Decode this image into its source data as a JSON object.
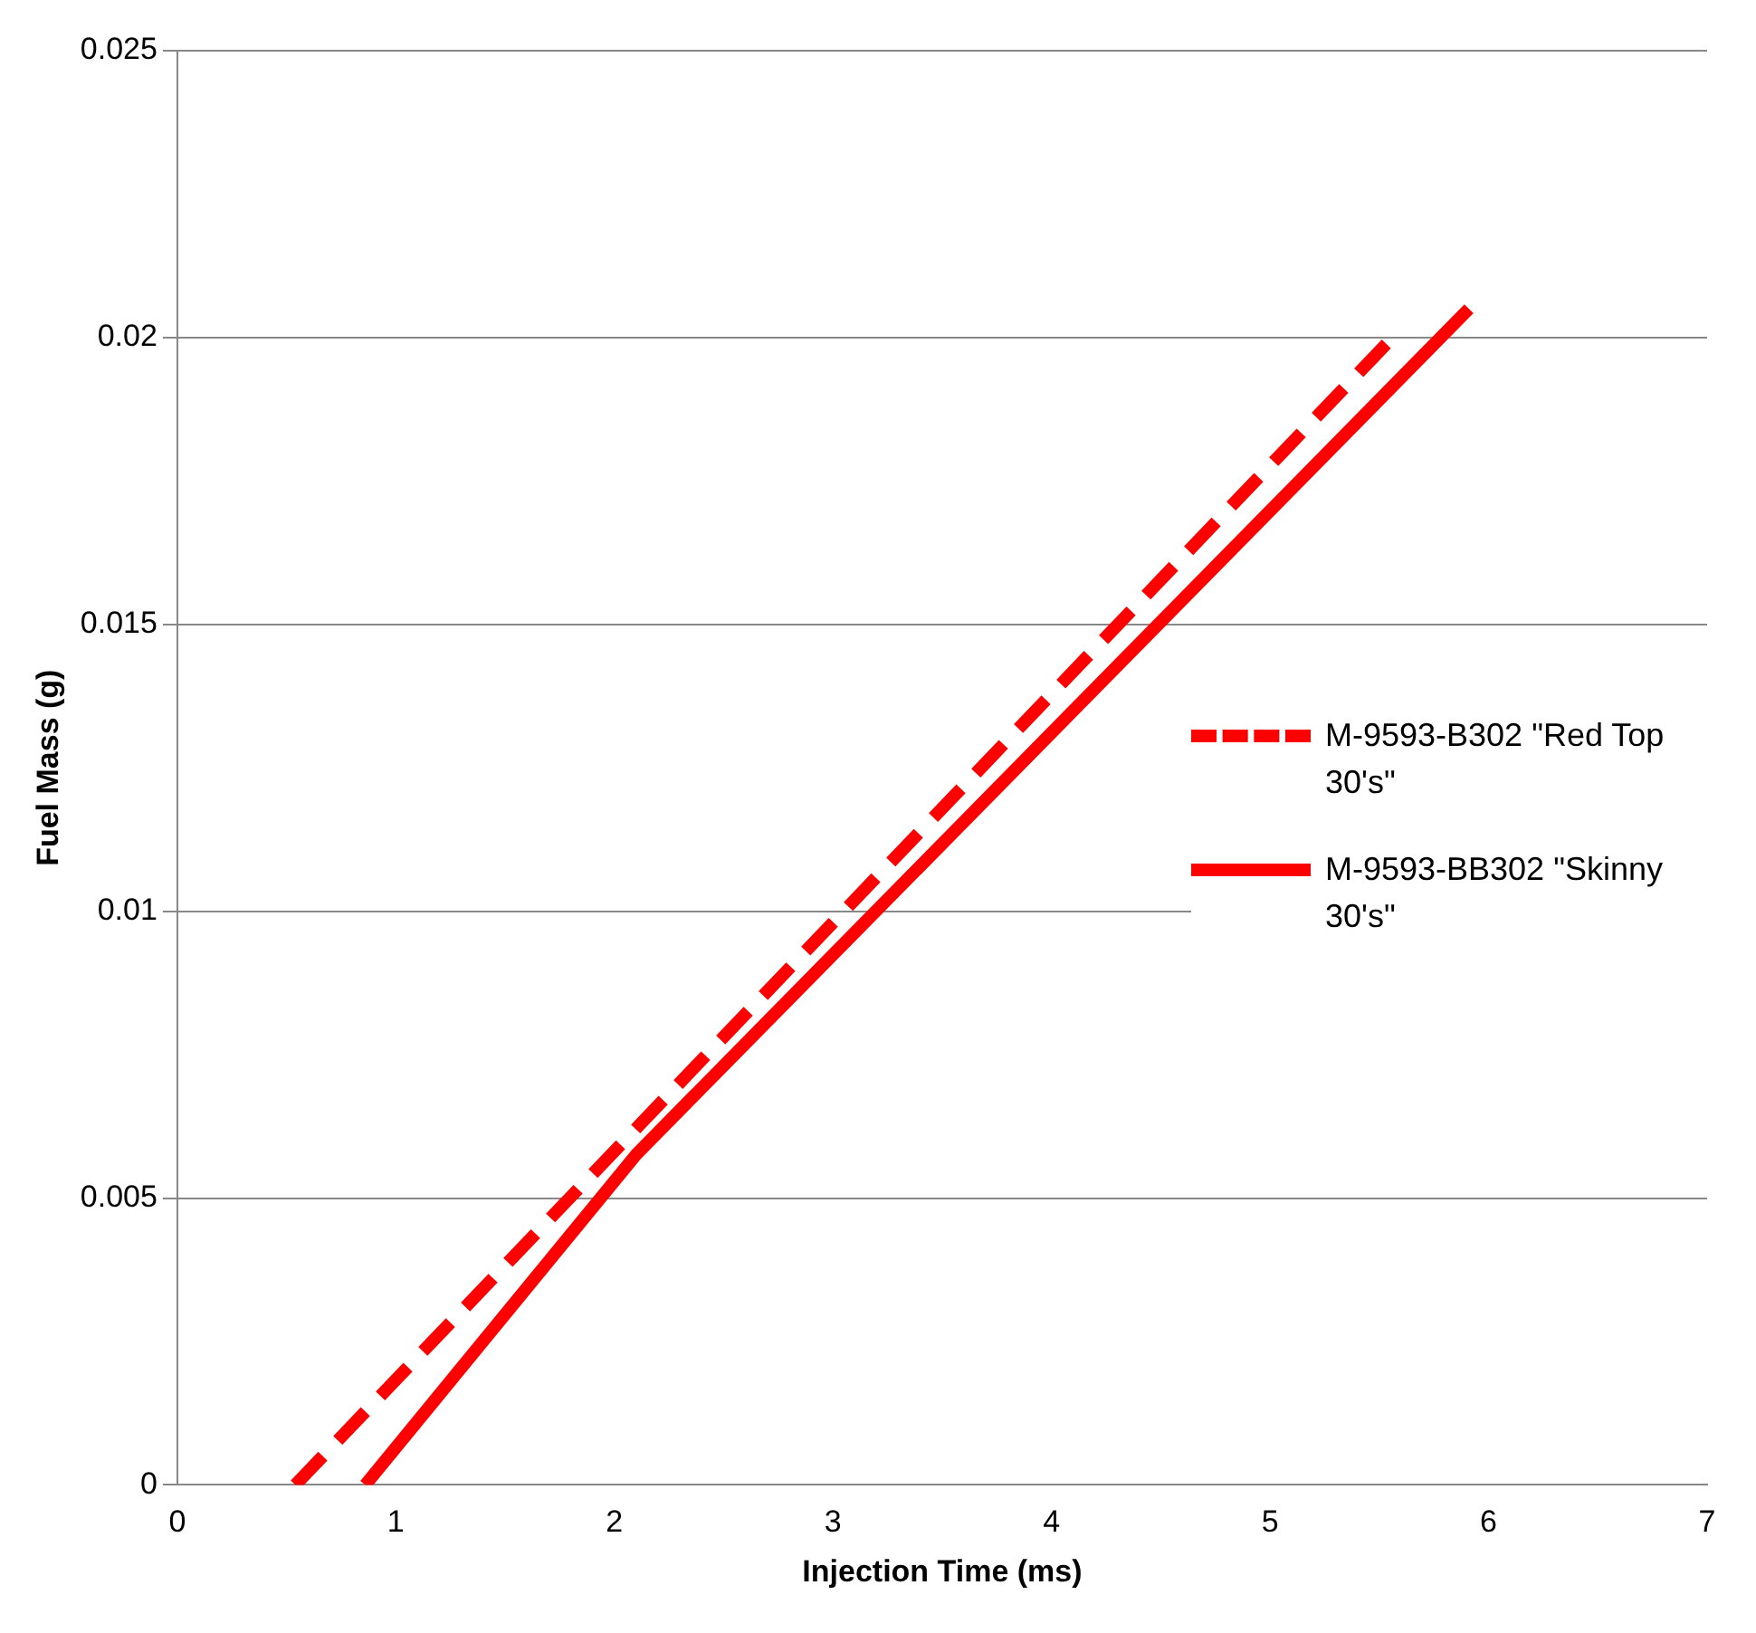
{
  "chart_data": {
    "type": "line",
    "xlabel": "Injection Time (ms)",
    "ylabel": "Fuel Mass (g)",
    "xlim": [
      0,
      7
    ],
    "xticks": [
      0,
      1,
      2,
      3,
      4,
      5,
      6,
      7
    ],
    "ylim": [
      0,
      0.025
    ],
    "yticks": [
      0,
      0.005,
      0.01,
      0.015,
      0.02,
      0.025
    ],
    "grid": "y",
    "legend": "right",
    "marker": "none",
    "series": [
      {
        "name": "M-9593-B302 \"Red Top 30's\"",
        "color": "#ff0000",
        "line_style": "dashed",
        "x": [
          0.54,
          5.56
        ],
        "values": [
          0,
          0.02
        ]
      },
      {
        "name": "M-9593-BB302 \"Skinny 30's\"",
        "color": "#ff0000",
        "line_style": "solid",
        "x": [
          0.86,
          2.1,
          5.91
        ],
        "values": [
          0,
          0.00576,
          0.0205
        ]
      }
    ]
  }
}
